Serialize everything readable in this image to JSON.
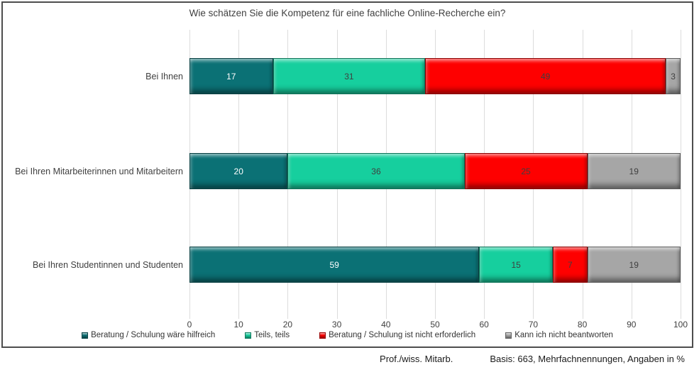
{
  "title": "Wie schätzen Sie die Kompetenz für eine fachliche Online-Recherche ein?",
  "footer": {
    "left": "Prof./wiss. Mitarb.",
    "right": "Basis: 663, Mehrfachnennungen, Angaben in %"
  },
  "colors": {
    "frame_border": "#4d4d4d",
    "gridline": "#dcdcdc",
    "text": "#404040",
    "series_teal": "#0B7175",
    "series_green": "#16CF9E",
    "series_red": "#FE0000",
    "series_gray": "#A6A6A6"
  },
  "chart_data": {
    "type": "bar",
    "orientation": "horizontal",
    "stacked": true,
    "title": "Wie schätzen Sie die Kompetenz für eine fachliche Online-Recherche ein?",
    "categories": [
      "Bei Ihnen",
      "Bei Ihren Mitarbeiterinnen und Mitarbeitern",
      "Bei Ihren Studentinnen und Studenten"
    ],
    "series": [
      {
        "name": "Beratung / Schulung wäre hilfreich",
        "color": "#0B7175",
        "label_color": "#FFFFFF",
        "values": [
          17,
          20,
          59
        ]
      },
      {
        "name": "Teils, teils",
        "color": "#16CF9E",
        "label_color": "#3F3F3F",
        "values": [
          31,
          36,
          15
        ]
      },
      {
        "name": "Beratung / Schulung ist nicht erforderlich",
        "color": "#FE0000",
        "label_color": "#3F3F3F",
        "values": [
          49,
          25,
          7
        ]
      },
      {
        "name": "Kann ich nicht beantworten",
        "color": "#A6A6A6",
        "label_color": "#3F3F3F",
        "values": [
          3,
          19,
          19
        ]
      }
    ],
    "x_ticks": [
      0,
      10,
      20,
      30,
      40,
      50,
      60,
      70,
      80,
      90,
      100
    ],
    "xlim": [
      0,
      100
    ],
    "grid": true,
    "legend_position": "bottom",
    "units": "%"
  }
}
